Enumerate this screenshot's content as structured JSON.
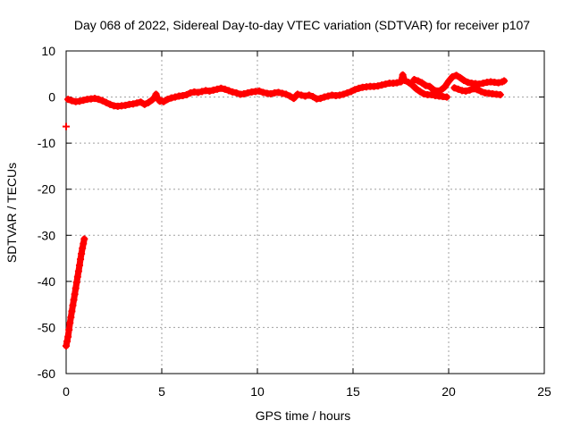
{
  "chart_data": {
    "type": "scatter",
    "title": "Day 068 of 2022, Sidereal Day-to-day VTEC variation (SDTVAR) for receiver p107",
    "xlabel": "GPS time / hours",
    "ylabel": "SDTVAR / TECUs",
    "xlim": [
      0,
      25
    ],
    "ylim": [
      -60,
      10
    ],
    "xticks": [
      0,
      5,
      10,
      15,
      20,
      25
    ],
    "yticks": [
      -60,
      -50,
      -40,
      -30,
      -20,
      -10,
      0,
      10
    ],
    "grid": true,
    "marker_color": "#ff0000",
    "marker": "plus",
    "series": [
      {
        "values": [
          [
            0.0,
            -6.4
          ],
          [
            0.0,
            -54.0
          ],
          [
            0.05,
            -53.0
          ],
          [
            0.1,
            -52.0
          ],
          [
            0.15,
            -50.5
          ],
          [
            0.2,
            -49.0
          ],
          [
            0.25,
            -47.8
          ],
          [
            0.3,
            -46.5
          ],
          [
            0.35,
            -45.2
          ],
          [
            0.4,
            -44.0
          ],
          [
            0.45,
            -42.8
          ],
          [
            0.5,
            -41.5
          ],
          [
            0.55,
            -40.2
          ],
          [
            0.6,
            -39.0
          ],
          [
            0.65,
            -37.8
          ],
          [
            0.7,
            -36.5
          ],
          [
            0.75,
            -35.2
          ],
          [
            0.8,
            -34.0
          ],
          [
            0.85,
            -32.8
          ],
          [
            0.9,
            -31.8
          ],
          [
            0.95,
            -30.8
          ],
          [
            0.1,
            -0.5
          ],
          [
            0.3,
            -0.8
          ],
          [
            0.5,
            -1.0
          ],
          [
            0.7,
            -0.9
          ],
          [
            0.9,
            -0.7
          ],
          [
            1.1,
            -0.5
          ],
          [
            1.3,
            -0.4
          ],
          [
            1.5,
            -0.3
          ],
          [
            1.7,
            -0.5
          ],
          [
            1.9,
            -0.8
          ],
          [
            2.1,
            -1.2
          ],
          [
            2.3,
            -1.6
          ],
          [
            2.5,
            -1.9
          ],
          [
            2.7,
            -2.0
          ],
          [
            2.9,
            -1.9
          ],
          [
            3.1,
            -1.8
          ],
          [
            3.3,
            -1.6
          ],
          [
            3.5,
            -1.5
          ],
          [
            3.7,
            -1.3
          ],
          [
            3.9,
            -1.1
          ],
          [
            4.1,
            -1.6
          ],
          [
            4.3,
            -1.2
          ],
          [
            4.5,
            -0.6
          ],
          [
            4.6,
            -0.2
          ],
          [
            4.7,
            0.6
          ],
          [
            4.8,
            -0.4
          ],
          [
            4.9,
            -0.9
          ],
          [
            5.0,
            -0.8
          ],
          [
            5.1,
            -1.0
          ],
          [
            5.3,
            -0.5
          ],
          [
            5.5,
            -0.2
          ],
          [
            5.7,
            0.0
          ],
          [
            5.9,
            0.2
          ],
          [
            6.1,
            0.3
          ],
          [
            6.3,
            0.5
          ],
          [
            6.5,
            0.9
          ],
          [
            6.7,
            1.1
          ],
          [
            6.9,
            1.0
          ],
          [
            7.1,
            1.2
          ],
          [
            7.3,
            1.4
          ],
          [
            7.5,
            1.3
          ],
          [
            7.7,
            1.5
          ],
          [
            7.9,
            1.7
          ],
          [
            8.1,
            1.9
          ],
          [
            8.3,
            1.7
          ],
          [
            8.5,
            1.4
          ],
          [
            8.7,
            1.1
          ],
          [
            8.9,
            0.9
          ],
          [
            9.1,
            0.6
          ],
          [
            9.3,
            0.7
          ],
          [
            9.5,
            0.9
          ],
          [
            9.7,
            1.1
          ],
          [
            9.9,
            1.2
          ],
          [
            10.1,
            1.3
          ],
          [
            10.3,
            1.0
          ],
          [
            10.5,
            0.8
          ],
          [
            10.7,
            0.7
          ],
          [
            10.9,
            0.9
          ],
          [
            11.1,
            1.0
          ],
          [
            11.3,
            0.8
          ],
          [
            11.5,
            0.6
          ],
          [
            11.7,
            0.2
          ],
          [
            11.9,
            -0.3
          ],
          [
            12.1,
            0.6
          ],
          [
            12.3,
            0.4
          ],
          [
            12.5,
            0.2
          ],
          [
            12.7,
            0.4
          ],
          [
            12.9,
            0.1
          ],
          [
            13.1,
            -0.4
          ],
          [
            13.3,
            -0.3
          ],
          [
            13.5,
            0.0
          ],
          [
            13.7,
            0.2
          ],
          [
            13.9,
            0.4
          ],
          [
            14.1,
            0.3
          ],
          [
            14.3,
            0.4
          ],
          [
            14.5,
            0.6
          ],
          [
            14.7,
            0.9
          ],
          [
            14.9,
            1.2
          ],
          [
            15.1,
            1.6
          ],
          [
            15.3,
            1.9
          ],
          [
            15.5,
            2.1
          ],
          [
            15.7,
            2.2
          ],
          [
            15.9,
            2.3
          ],
          [
            16.1,
            2.3
          ],
          [
            16.3,
            2.4
          ],
          [
            16.5,
            2.6
          ],
          [
            16.7,
            2.8
          ],
          [
            16.9,
            3.0
          ],
          [
            17.1,
            3.0
          ],
          [
            17.3,
            3.1
          ],
          [
            17.5,
            3.3
          ],
          [
            17.6,
            4.8
          ],
          [
            17.7,
            3.6
          ],
          [
            17.9,
            3.2
          ],
          [
            18.1,
            2.6
          ],
          [
            18.3,
            1.8
          ],
          [
            18.5,
            1.2
          ],
          [
            18.7,
            0.7
          ],
          [
            18.9,
            0.5
          ],
          [
            19.1,
            0.5
          ],
          [
            19.3,
            0.3
          ],
          [
            19.5,
            0.2
          ],
          [
            19.7,
            0.1
          ],
          [
            19.9,
            0.0
          ],
          [
            18.2,
            3.8
          ],
          [
            18.4,
            3.5
          ],
          [
            18.6,
            3.1
          ],
          [
            18.8,
            2.5
          ],
          [
            19.0,
            2.3
          ],
          [
            19.2,
            1.6
          ],
          [
            19.4,
            1.3
          ],
          [
            19.6,
            1.5
          ],
          [
            19.8,
            2.2
          ],
          [
            20.0,
            3.4
          ],
          [
            20.2,
            4.4
          ],
          [
            20.4,
            4.7
          ],
          [
            20.6,
            4.2
          ],
          [
            20.8,
            3.6
          ],
          [
            21.0,
            3.2
          ],
          [
            21.2,
            3.0
          ],
          [
            21.4,
            2.9
          ],
          [
            21.6,
            2.8
          ],
          [
            21.8,
            3.0
          ],
          [
            22.0,
            3.2
          ],
          [
            22.2,
            3.3
          ],
          [
            22.4,
            3.2
          ],
          [
            22.6,
            3.1
          ],
          [
            22.8,
            3.3
          ],
          [
            22.9,
            3.5
          ],
          [
            20.3,
            2.0
          ],
          [
            20.5,
            1.7
          ],
          [
            20.7,
            1.4
          ],
          [
            20.9,
            1.3
          ],
          [
            21.1,
            1.5
          ],
          [
            21.3,
            1.8
          ],
          [
            21.5,
            1.6
          ],
          [
            21.7,
            1.2
          ],
          [
            21.9,
            0.9
          ],
          [
            22.1,
            0.8
          ],
          [
            22.3,
            0.7
          ],
          [
            22.5,
            0.6
          ],
          [
            22.7,
            0.5
          ]
        ]
      }
    ]
  }
}
